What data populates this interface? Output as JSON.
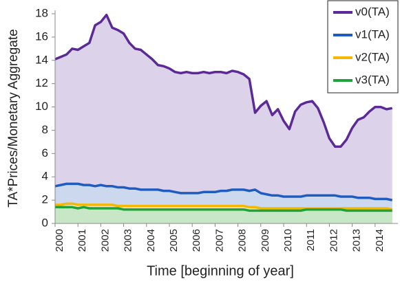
{
  "chart_data": {
    "type": "area",
    "y_label": "TA*Prices/Monetary Aggregate",
    "x_label": "Time [beginning of year]",
    "x": [
      2000,
      2000.25,
      2000.5,
      2000.75,
      2001,
      2001.25,
      2001.5,
      2001.75,
      2002,
      2002.25,
      2002.5,
      2002.75,
      2003,
      2003.25,
      2003.5,
      2003.75,
      2004,
      2004.25,
      2004.5,
      2004.75,
      2005,
      2005.25,
      2005.5,
      2005.75,
      2006,
      2006.25,
      2006.5,
      2006.75,
      2007,
      2007.25,
      2007.5,
      2007.75,
      2008,
      2008.25,
      2008.5,
      2008.75,
      2009,
      2009.25,
      2009.5,
      2009.75,
      2010,
      2010.25,
      2010.5,
      2010.75,
      2011,
      2011.25,
      2011.5,
      2011.75,
      2012,
      2012.25,
      2012.5,
      2012.75,
      2013,
      2013.25,
      2013.5,
      2013.75,
      2014,
      2014.25,
      2014.5,
      2014.75
    ],
    "xlim": [
      2000,
      2015
    ],
    "xticks": [
      2000,
      2001,
      2002,
      2003,
      2004,
      2005,
      2006,
      2007,
      2008,
      2009,
      2010,
      2011,
      2012,
      2013,
      2014
    ],
    "ylim": [
      0,
      18
    ],
    "yticks": [
      0,
      2,
      4,
      6,
      8,
      10,
      12,
      14,
      16,
      18
    ],
    "legend": "upper right",
    "series": [
      {
        "name": "v0(TA)",
        "color": "#5b2a96",
        "fill": "#dcd2ea",
        "values": [
          14.1,
          14.3,
          14.5,
          15.0,
          14.9,
          15.2,
          15.5,
          17.0,
          17.3,
          17.9,
          16.8,
          16.6,
          16.3,
          15.5,
          15.0,
          14.9,
          14.5,
          14.1,
          13.6,
          13.5,
          13.3,
          13.0,
          12.9,
          13.0,
          12.9,
          12.9,
          13.0,
          12.9,
          13.0,
          13.0,
          12.9,
          13.1,
          13.0,
          12.8,
          12.4,
          9.5,
          10.1,
          10.5,
          9.3,
          9.8,
          8.8,
          8.1,
          9.6,
          10.2,
          10.4,
          10.5,
          9.9,
          8.7,
          7.3,
          6.6,
          6.6,
          7.2,
          8.2,
          8.9,
          9.1,
          9.6,
          10.0,
          10.0,
          9.8,
          9.9
        ]
      },
      {
        "name": "v1(TA)",
        "color": "#1f5cc0",
        "fill": "#cbd8ee",
        "values": [
          3.2,
          3.3,
          3.4,
          3.4,
          3.4,
          3.3,
          3.3,
          3.2,
          3.3,
          3.2,
          3.2,
          3.1,
          3.1,
          3.0,
          3.0,
          2.9,
          2.9,
          2.9,
          2.9,
          2.8,
          2.8,
          2.7,
          2.6,
          2.6,
          2.6,
          2.6,
          2.7,
          2.7,
          2.7,
          2.8,
          2.8,
          2.9,
          2.9,
          2.9,
          2.8,
          2.9,
          2.6,
          2.5,
          2.4,
          2.4,
          2.3,
          2.3,
          2.3,
          2.3,
          2.4,
          2.4,
          2.4,
          2.4,
          2.4,
          2.4,
          2.3,
          2.3,
          2.3,
          2.2,
          2.2,
          2.2,
          2.1,
          2.1,
          2.1,
          2.0
        ]
      },
      {
        "name": "v2(TA)",
        "color": "#f5b800",
        "fill": "#f4e8c2",
        "values": [
          1.6,
          1.6,
          1.7,
          1.7,
          1.6,
          1.6,
          1.6,
          1.6,
          1.6,
          1.6,
          1.6,
          1.5,
          1.5,
          1.5,
          1.5,
          1.5,
          1.5,
          1.5,
          1.5,
          1.5,
          1.5,
          1.5,
          1.5,
          1.5,
          1.5,
          1.5,
          1.5,
          1.5,
          1.5,
          1.5,
          1.5,
          1.5,
          1.5,
          1.5,
          1.4,
          1.4,
          1.3,
          1.3,
          1.3,
          1.3,
          1.3,
          1.3,
          1.3,
          1.3,
          1.3,
          1.3,
          1.3,
          1.3,
          1.3,
          1.3,
          1.3,
          1.3,
          1.3,
          1.3,
          1.3,
          1.3,
          1.3,
          1.3,
          1.3,
          1.2
        ]
      },
      {
        "name": "v3(TA)",
        "color": "#1ea338",
        "fill": "#c7e7c6",
        "values": [
          1.4,
          1.4,
          1.4,
          1.4,
          1.3,
          1.4,
          1.3,
          1.3,
          1.3,
          1.3,
          1.3,
          1.3,
          1.2,
          1.2,
          1.2,
          1.2,
          1.2,
          1.2,
          1.2,
          1.2,
          1.2,
          1.2,
          1.2,
          1.2,
          1.2,
          1.2,
          1.2,
          1.2,
          1.2,
          1.2,
          1.2,
          1.2,
          1.2,
          1.2,
          1.1,
          1.1,
          1.1,
          1.1,
          1.1,
          1.1,
          1.1,
          1.1,
          1.1,
          1.1,
          1.2,
          1.2,
          1.2,
          1.2,
          1.2,
          1.2,
          1.2,
          1.1,
          1.1,
          1.1,
          1.1,
          1.1,
          1.1,
          1.1,
          1.1,
          1.1
        ]
      }
    ]
  }
}
